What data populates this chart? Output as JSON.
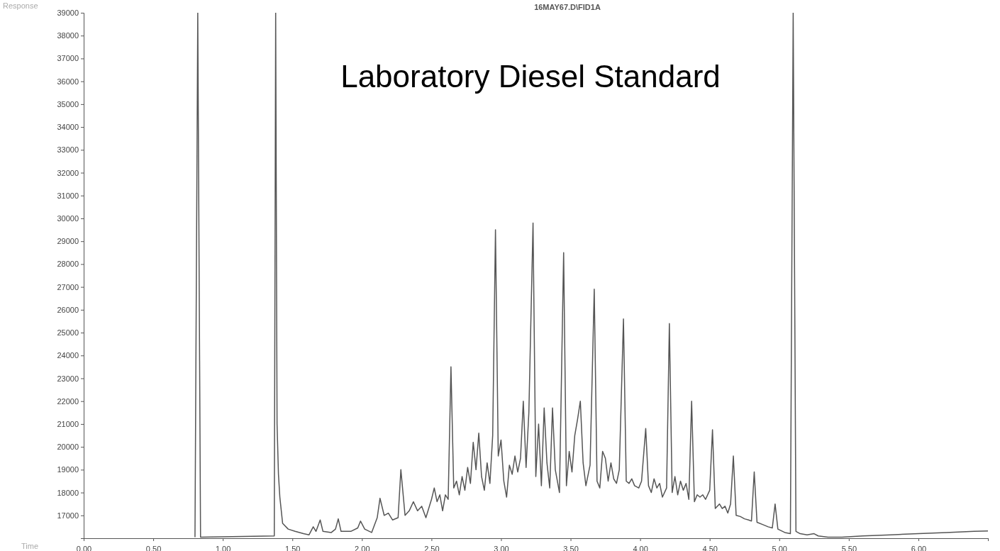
{
  "chart_data": {
    "type": "line",
    "title": "16MAY67.D\\FID1A",
    "xlabel": "Time",
    "ylabel": "Response",
    "annotations": [
      "Laboratory Diesel Standard"
    ],
    "xlim": [
      0,
      6.5
    ],
    "ylim": [
      16000,
      39000
    ],
    "xticks": [
      {
        "value": 0,
        "label": "0.00"
      },
      {
        "value": 0.5,
        "label": "0.50"
      },
      {
        "value": 1,
        "label": "1.00"
      },
      {
        "value": 1.5,
        "label": "1.50"
      },
      {
        "value": 2,
        "label": "2.00"
      },
      {
        "value": 2.5,
        "label": "2.50"
      },
      {
        "value": 3,
        "label": "3.00"
      },
      {
        "value": 3.5,
        "label": "3.50"
      },
      {
        "value": 4,
        "label": "4.00"
      },
      {
        "value": 4.5,
        "label": "4.50"
      },
      {
        "value": 5,
        "label": "5.00"
      },
      {
        "value": 5.5,
        "label": "5.50"
      },
      {
        "value": 6,
        "label": "6.00"
      },
      {
        "value": 6.5,
        "label": null
      }
    ],
    "yticks": [
      17000,
      18000,
      19000,
      20000,
      21000,
      22000,
      23000,
      24000,
      25000,
      26000,
      27000,
      28000,
      29000,
      30000,
      31000,
      32000,
      33000,
      34000,
      35000,
      36000,
      37000,
      38000,
      39000
    ],
    "grid": false,
    "marker": "none",
    "line_style": "solid",
    "x": [
      0.8,
      0.82,
      0.84,
      1.37,
      1.38,
      1.39,
      1.4,
      1.41,
      1.43,
      1.47,
      1.52,
      1.58,
      1.62,
      1.65,
      1.67,
      1.7,
      1.72,
      1.78,
      1.81,
      1.83,
      1.85,
      1.92,
      1.97,
      1.99,
      2.02,
      2.07,
      2.11,
      2.13,
      2.16,
      2.19,
      2.22,
      2.26,
      2.28,
      2.31,
      2.34,
      2.37,
      2.4,
      2.43,
      2.46,
      2.5,
      2.52,
      2.54,
      2.56,
      2.58,
      2.6,
      2.62,
      2.64,
      2.66,
      2.68,
      2.7,
      2.72,
      2.74,
      2.76,
      2.78,
      2.8,
      2.82,
      2.84,
      2.86,
      2.88,
      2.9,
      2.92,
      2.94,
      2.96,
      2.98,
      3.0,
      3.02,
      3.04,
      3.06,
      3.08,
      3.1,
      3.12,
      3.14,
      3.16,
      3.18,
      3.2,
      3.23,
      3.25,
      3.27,
      3.29,
      3.31,
      3.33,
      3.35,
      3.37,
      3.39,
      3.42,
      3.45,
      3.47,
      3.49,
      3.51,
      3.53,
      3.55,
      3.57,
      3.59,
      3.61,
      3.64,
      3.67,
      3.69,
      3.71,
      3.73,
      3.75,
      3.77,
      3.79,
      3.81,
      3.83,
      3.85,
      3.88,
      3.9,
      3.92,
      3.94,
      3.96,
      3.99,
      4.01,
      4.04,
      4.06,
      4.08,
      4.1,
      4.12,
      4.14,
      4.16,
      4.19,
      4.21,
      4.23,
      4.25,
      4.27,
      4.29,
      4.31,
      4.33,
      4.35,
      4.37,
      4.39,
      4.41,
      4.43,
      4.45,
      4.47,
      4.5,
      4.52,
      4.54,
      4.57,
      4.59,
      4.61,
      4.63,
      4.65,
      4.67,
      4.69,
      4.72,
      4.75,
      4.78,
      4.8,
      4.82,
      4.84,
      4.88,
      4.92,
      4.95,
      4.97,
      4.99,
      5.04,
      5.08,
      5.1,
      5.12,
      5.15,
      5.2,
      5.25,
      5.28,
      5.35,
      5.45,
      5.6,
      5.8,
      6.0,
      6.2,
      6.4,
      6.5
    ],
    "series": [
      {
        "color": "#555555",
        "values": [
          16050,
          39000,
          16050,
          16100,
          39000,
          21000,
          18800,
          17800,
          16650,
          16400,
          16300,
          16200,
          16150,
          16500,
          16300,
          16800,
          16300,
          16250,
          16400,
          16850,
          16300,
          16300,
          16450,
          16750,
          16400,
          16250,
          16900,
          17750,
          17000,
          17100,
          16800,
          16900,
          19000,
          17000,
          17200,
          17600,
          17200,
          17400,
          16900,
          17700,
          18200,
          17600,
          17900,
          17200,
          17900,
          17700,
          23500,
          18200,
          18500,
          17900,
          18700,
          18100,
          19100,
          18400,
          20200,
          19000,
          20600,
          18700,
          18100,
          19300,
          18400,
          20500,
          29500,
          19600,
          20300,
          18500,
          17800,
          19200,
          18800,
          19600,
          18900,
          19500,
          22000,
          19100,
          21500,
          29800,
          18700,
          21000,
          18300,
          21700,
          19300,
          18200,
          21700,
          19000,
          18000,
          28500,
          18300,
          19800,
          18900,
          20500,
          21200,
          22000,
          19300,
          18300,
          19200,
          26900,
          18500,
          18200,
          19800,
          19500,
          18500,
          19300,
          18600,
          18400,
          19000,
          25600,
          18500,
          18400,
          18600,
          18300,
          18200,
          18500,
          20800,
          18300,
          18000,
          18600,
          18200,
          18400,
          17800,
          18200,
          25400,
          18000,
          18700,
          17900,
          18500,
          18100,
          18400,
          17700,
          22000,
          17600,
          17900,
          17800,
          17900,
          17700,
          18100,
          20750,
          17300,
          17500,
          17300,
          17400,
          17100,
          17500,
          19600,
          17000,
          16950,
          16850,
          16800,
          16750,
          18900,
          16700,
          16600,
          16500,
          16450,
          17500,
          16400,
          16250,
          16200,
          39000,
          16300,
          16200,
          16150,
          16200,
          16100,
          16050,
          16050,
          16100,
          16150,
          16200,
          16250,
          16300,
          16320
        ]
      }
    ]
  }
}
